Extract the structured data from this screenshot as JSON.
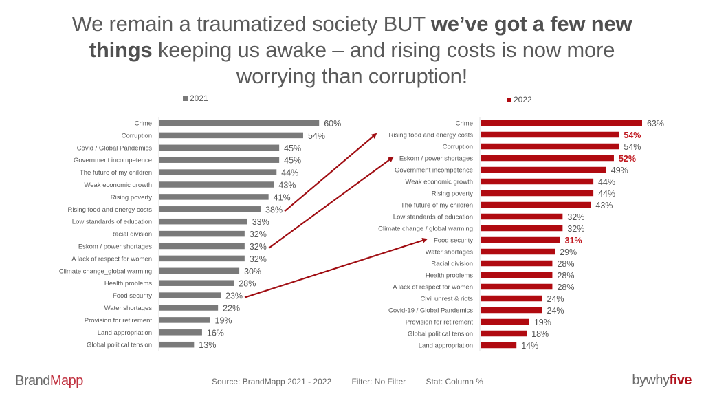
{
  "title": {
    "part1": "We remain a traumatized society BUT ",
    "bold1": "we’ve got a few new things",
    "part2": " keeping us awake – and rising costs is now more worrying than corruption!"
  },
  "colors": {
    "series_2021": "#7a7a7a",
    "series_2022": "#b00a10",
    "highlight_label": "#c0181f",
    "arrow": "#a00d12",
    "axis": "#e2e2e2",
    "label_text": "#555555"
  },
  "chart_data": [
    {
      "type": "bar",
      "orientation": "horizontal",
      "legend": "2021",
      "legend_position": "top",
      "unit": "%",
      "xlim": [
        0,
        60
      ],
      "grid": false,
      "categories": [
        "Crime",
        "Corruption",
        "Covid / Global Pandemics",
        "Government incompetence",
        "The future of my children",
        "Weak economic growth",
        "Rising poverty",
        "Rising food and energy costs",
        "Low standards of education",
        "Racial division",
        "Eskom / power shortages",
        "A lack of respect for women",
        "Climate change_global warming",
        "Health problems",
        "Food security",
        "Water shortages",
        "Provision for retirement",
        "Land appropriation",
        "Global political tension"
      ],
      "values": [
        60,
        54,
        45,
        45,
        44,
        43,
        41,
        38,
        33,
        32,
        32,
        32,
        30,
        28,
        23,
        22,
        19,
        16,
        13
      ],
      "highlighted": []
    },
    {
      "type": "bar",
      "orientation": "horizontal",
      "legend": "2022",
      "legend_position": "top",
      "unit": "%",
      "xlim": [
        0,
        63
      ],
      "grid": false,
      "categories": [
        "Crime",
        "Rising food and energy costs",
        "Corruption",
        "Eskom / power shortages",
        "Government incompetence",
        "Weak economic growth",
        "Rising poverty",
        "The future of my children",
        "Low standards of education",
        "Climate change / global warming",
        "Food security",
        "Water shortages",
        "Racial division",
        "Health problems",
        "A lack of respect for women",
        "Civil unrest & riots",
        "Covid-19 / Global Pandemics",
        "Provision for retirement",
        "Global political tension",
        "Land appropriation"
      ],
      "values": [
        63,
        54,
        54,
        52,
        49,
        44,
        44,
        43,
        32,
        32,
        31,
        29,
        28,
        28,
        28,
        24,
        24,
        19,
        18,
        14
      ],
      "highlighted": [
        "Rising food and energy costs",
        "Eskom / power shortages",
        "Food security"
      ]
    }
  ],
  "annotations": [
    {
      "from": "Rising food and energy costs",
      "from_year": "2021",
      "to": "Rising food and energy costs",
      "to_year": "2022"
    },
    {
      "from": "Eskom / power shortages",
      "from_year": "2021",
      "to": "Eskom / power shortages",
      "to_year": "2022"
    },
    {
      "from": "Food security",
      "from_year": "2021",
      "to": "Food security",
      "to_year": "2022"
    }
  ],
  "footer": {
    "brand_left_a": "Brand",
    "brand_left_b": "Mapp",
    "source": "Source: BrandMapp 2021 - 2022",
    "filter": "Filter: No Filter",
    "stat": "Stat: Column %",
    "brand_right_a": "bywhy",
    "brand_right_b": "five"
  }
}
